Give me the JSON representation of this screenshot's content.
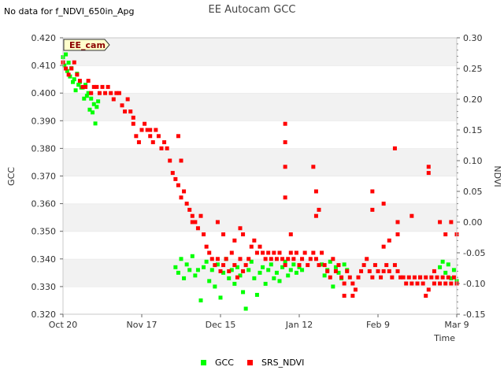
{
  "title": "EE Autocam GCC",
  "no_data_note": "No data for f_NDVI_650in_Apg",
  "site_label": "EE_cam",
  "chart_data": {
    "type": "scatter",
    "title": "EE Autocam GCC",
    "xlabel": "Time",
    "ylabel_left": "GCC",
    "ylabel_right": "NDVI",
    "x_ticks": [
      "Oct 20",
      "Nov 17",
      "Dec 15",
      "Jan 12",
      "Feb 9",
      "Mar 9"
    ],
    "x_range_days": [
      0,
      140
    ],
    "y_left": {
      "range": [
        0.32,
        0.42
      ],
      "ticks": [
        "0.320",
        "0.330",
        "0.340",
        "0.350",
        "0.360",
        "0.370",
        "0.380",
        "0.390",
        "0.400",
        "0.410",
        "0.420"
      ]
    },
    "y_right": {
      "range": [
        -0.15,
        0.3
      ],
      "ticks": [
        "-0.15",
        "-0.10",
        "-0.05",
        "0.00",
        "0.05",
        "0.10",
        "0.15",
        "0.20",
        "0.25",
        "0.30"
      ]
    },
    "grid": "horizontal alternating bands",
    "legend_position": "bottom-center",
    "series": [
      {
        "name": "GCC",
        "color": "#00ff00",
        "axis": "left",
        "points": [
          [
            0,
            0.413
          ],
          [
            0.5,
            0.41
          ],
          [
            1,
            0.414
          ],
          [
            1.5,
            0.408
          ],
          [
            2,
            0.411
          ],
          [
            2.5,
            0.406
          ],
          [
            3,
            0.409
          ],
          [
            3.5,
            0.404
          ],
          [
            4,
            0.405
          ],
          [
            4.5,
            0.401
          ],
          [
            5,
            0.407
          ],
          [
            5.5,
            0.403
          ],
          [
            6,
            0.404
          ],
          [
            6.5,
            0.402
          ],
          [
            7,
            0.402
          ],
          [
            7.5,
            0.398
          ],
          [
            8,
            0.403
          ],
          [
            8.5,
            0.399
          ],
          [
            9,
            0.4
          ],
          [
            9.5,
            0.394
          ],
          [
            10,
            0.398
          ],
          [
            10.5,
            0.393
          ],
          [
            11,
            0.396
          ],
          [
            11.5,
            0.389
          ],
          [
            12,
            0.395
          ],
          [
            12.5,
            0.397
          ],
          [
            40,
            0.337
          ],
          [
            41,
            0.335
          ],
          [
            42,
            0.34
          ],
          [
            43,
            0.333
          ],
          [
            44,
            0.338
          ],
          [
            45,
            0.336
          ],
          [
            46,
            0.341
          ],
          [
            47,
            0.334
          ],
          [
            48,
            0.336
          ],
          [
            49,
            0.325
          ],
          [
            50,
            0.337
          ],
          [
            51,
            0.339
          ],
          [
            52,
            0.332
          ],
          [
            53,
            0.336
          ],
          [
            54,
            0.33
          ],
          [
            55,
            0.338
          ],
          [
            56,
            0.326
          ],
          [
            57,
            0.335
          ],
          [
            58,
            0.34
          ],
          [
            59,
            0.333
          ],
          [
            60,
            0.336
          ],
          [
            61,
            0.331
          ],
          [
            62,
            0.337
          ],
          [
            63,
            0.334
          ],
          [
            64,
            0.328
          ],
          [
            65,
            0.322
          ],
          [
            66,
            0.336
          ],
          [
            67,
            0.339
          ],
          [
            68,
            0.333
          ],
          [
            69,
            0.327
          ],
          [
            70,
            0.335
          ],
          [
            71,
            0.337
          ],
          [
            72,
            0.331
          ],
          [
            73,
            0.336
          ],
          [
            74,
            0.338
          ],
          [
            75,
            0.333
          ],
          [
            76,
            0.335
          ],
          [
            77,
            0.332
          ],
          [
            78,
            0.337
          ],
          [
            79,
            0.339
          ],
          [
            80,
            0.334
          ],
          [
            81,
            0.336
          ],
          [
            82,
            0.338
          ],
          [
            83,
            0.335
          ],
          [
            84,
            0.337
          ],
          [
            85,
            0.336
          ],
          [
            92,
            0.338
          ],
          [
            93,
            0.334
          ],
          [
            94,
            0.336
          ],
          [
            95,
            0.339
          ],
          [
            96,
            0.33
          ],
          [
            97,
            0.337
          ],
          [
            98,
            0.335
          ],
          [
            99,
            0.333
          ],
          [
            100,
            0.338
          ],
          [
            101,
            0.336
          ],
          [
            134,
            0.337
          ],
          [
            135,
            0.339
          ],
          [
            136,
            0.335
          ],
          [
            137,
            0.338
          ],
          [
            138,
            0.333
          ],
          [
            139,
            0.336
          ],
          [
            140,
            0.332
          ]
        ]
      },
      {
        "name": "SRS_NDVI",
        "color": "#ff0000",
        "axis": "right",
        "points": [
          [
            0,
            0.26
          ],
          [
            1,
            0.25
          ],
          [
            2,
            0.24
          ],
          [
            3,
            0.25
          ],
          [
            4,
            0.26
          ],
          [
            5,
            0.24
          ],
          [
            6,
            0.23
          ],
          [
            7,
            0.22
          ],
          [
            8,
            0.22
          ],
          [
            9,
            0.23
          ],
          [
            10,
            0.21
          ],
          [
            11,
            0.22
          ],
          [
            12,
            0.22
          ],
          [
            13,
            0.21
          ],
          [
            14,
            0.22
          ],
          [
            15,
            0.21
          ],
          [
            16,
            0.22
          ],
          [
            17,
            0.21
          ],
          [
            18,
            0.2
          ],
          [
            19,
            0.21
          ],
          [
            20,
            0.21
          ],
          [
            21,
            0.19
          ],
          [
            22,
            0.18
          ],
          [
            23,
            0.2
          ],
          [
            24,
            0.18
          ],
          [
            25,
            0.17
          ],
          [
            26,
            0.14
          ],
          [
            27,
            0.13
          ],
          [
            28,
            0.15
          ],
          [
            29,
            0.16
          ],
          [
            30,
            0.15
          ],
          [
            31,
            0.14
          ],
          [
            32,
            0.13
          ],
          [
            33,
            0.15
          ],
          [
            34,
            0.14
          ],
          [
            35,
            0.12
          ],
          [
            36,
            0.13
          ],
          [
            37,
            0.12
          ],
          [
            38,
            0.1
          ],
          [
            39,
            0.08
          ],
          [
            40,
            0.07
          ],
          [
            41,
            0.06
          ],
          [
            42,
            0.04
          ],
          [
            43,
            0.05
          ],
          [
            44,
            0.03
          ],
          [
            45,
            0.02
          ],
          [
            46,
            0.01
          ],
          [
            47,
            0.0
          ],
          [
            48,
            -0.01
          ],
          [
            49,
            0.01
          ],
          [
            50,
            -0.02
          ],
          [
            51,
            -0.04
          ],
          [
            52,
            -0.05
          ],
          [
            53,
            -0.06
          ],
          [
            54,
            -0.07
          ],
          [
            55,
            -0.06
          ],
          [
            56,
            -0.08
          ],
          [
            57,
            -0.07
          ],
          [
            58,
            -0.06
          ],
          [
            59,
            -0.08
          ],
          [
            60,
            -0.05
          ],
          [
            61,
            -0.07
          ],
          [
            62,
            -0.09
          ],
          [
            63,
            -0.06
          ],
          [
            64,
            -0.08
          ],
          [
            65,
            -0.07
          ],
          [
            66,
            -0.06
          ],
          [
            67,
            -0.04
          ],
          [
            68,
            -0.03
          ],
          [
            69,
            -0.05
          ],
          [
            70,
            -0.04
          ],
          [
            71,
            -0.05
          ],
          [
            72,
            -0.06
          ],
          [
            73,
            -0.05
          ],
          [
            74,
            -0.06
          ],
          [
            75,
            -0.05
          ],
          [
            76,
            -0.06
          ],
          [
            77,
            -0.05
          ],
          [
            78,
            -0.06
          ],
          [
            79,
            -0.07
          ],
          [
            80,
            -0.06
          ],
          [
            81,
            -0.05
          ],
          [
            82,
            -0.06
          ],
          [
            83,
            -0.05
          ],
          [
            84,
            -0.07
          ],
          [
            85,
            -0.06
          ],
          [
            86,
            -0.05
          ],
          [
            87,
            -0.07
          ],
          [
            88,
            -0.06
          ],
          [
            89,
            -0.05
          ],
          [
            90,
            -0.06
          ],
          [
            91,
            -0.07
          ],
          [
            92,
            -0.05
          ],
          [
            93,
            -0.07
          ],
          [
            94,
            -0.08
          ],
          [
            95,
            -0.09
          ],
          [
            96,
            -0.06
          ],
          [
            97,
            -0.08
          ],
          [
            98,
            -0.07
          ],
          [
            99,
            -0.09
          ],
          [
            100,
            -0.1
          ],
          [
            101,
            -0.08
          ],
          [
            102,
            -0.09
          ],
          [
            103,
            -0.1
          ],
          [
            104,
            -0.11
          ],
          [
            105,
            -0.09
          ],
          [
            106,
            -0.08
          ],
          [
            107,
            -0.07
          ],
          [
            108,
            -0.06
          ],
          [
            109,
            -0.08
          ],
          [
            110,
            -0.09
          ],
          [
            111,
            -0.07
          ],
          [
            112,
            -0.08
          ],
          [
            113,
            -0.09
          ],
          [
            114,
            -0.08
          ],
          [
            115,
            -0.07
          ],
          [
            116,
            -0.08
          ],
          [
            117,
            -0.09
          ],
          [
            118,
            -0.07
          ],
          [
            119,
            -0.08
          ],
          [
            120,
            -0.09
          ],
          [
            121,
            -0.09
          ],
          [
            122,
            -0.1
          ],
          [
            123,
            -0.09
          ],
          [
            124,
            -0.1
          ],
          [
            125,
            -0.09
          ],
          [
            126,
            -0.1
          ],
          [
            127,
            -0.09
          ],
          [
            128,
            -0.1
          ],
          [
            129,
            -0.09
          ],
          [
            130,
            -0.11
          ],
          [
            131,
            -0.09
          ],
          [
            132,
            -0.1
          ],
          [
            133,
            -0.09
          ],
          [
            134,
            -0.1
          ],
          [
            135,
            -0.09
          ],
          [
            136,
            -0.1
          ],
          [
            137,
            -0.09
          ],
          [
            138,
            -0.1
          ],
          [
            139,
            -0.09
          ],
          [
            140,
            -0.1
          ],
          [
            25,
            0.16
          ],
          [
            31,
            0.15
          ],
          [
            41,
            0.14
          ],
          [
            42,
            0.1
          ],
          [
            46,
            -0.0
          ],
          [
            55,
            0.0
          ],
          [
            57,
            -0.02
          ],
          [
            61,
            -0.03
          ],
          [
            63,
            -0.01
          ],
          [
            64,
            -0.02
          ],
          [
            79,
            0.13
          ],
          [
            79,
            0.16
          ],
          [
            79,
            0.09
          ],
          [
            79,
            0.04
          ],
          [
            81,
            -0.02
          ],
          [
            89,
            0.09
          ],
          [
            90,
            0.05
          ],
          [
            90,
            0.01
          ],
          [
            91,
            0.02
          ],
          [
            110,
            0.05
          ],
          [
            110,
            0.02
          ],
          [
            114,
            0.03
          ],
          [
            118,
            0.12
          ],
          [
            119,
            0.0
          ],
          [
            119,
            -0.02
          ],
          [
            124,
            0.01
          ],
          [
            130,
            0.09
          ],
          [
            130,
            0.08
          ],
          [
            134,
            0.0
          ],
          [
            136,
            -0.02
          ],
          [
            138,
            0.0
          ],
          [
            140,
            -0.02
          ],
          [
            100,
            -0.12
          ],
          [
            103,
            -0.12
          ],
          [
            129,
            -0.12
          ],
          [
            114,
            -0.04
          ],
          [
            116,
            -0.03
          ],
          [
            127,
            -0.09
          ],
          [
            132,
            -0.08
          ]
        ]
      }
    ]
  },
  "legend": {
    "gcc_label": "GCC",
    "ndvi_label": "SRS_NDVI"
  }
}
